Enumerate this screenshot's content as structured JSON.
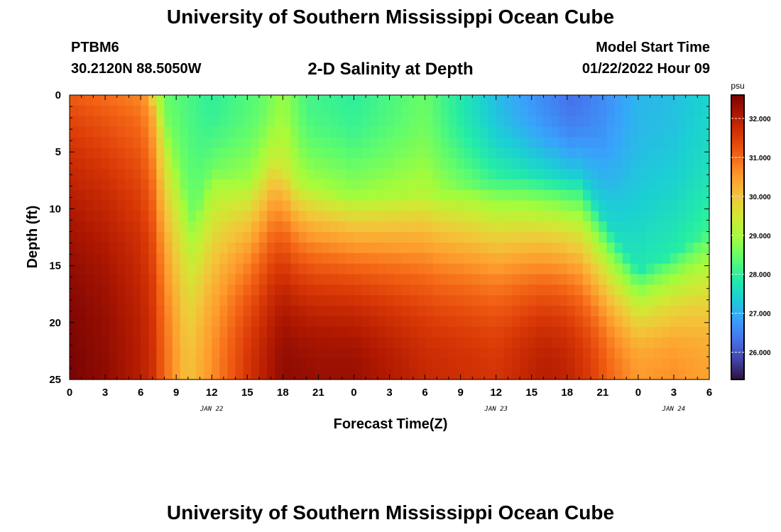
{
  "header": {
    "title": "University of Southern Mississippi Ocean Cube",
    "station": "PTBM6",
    "coords": "30.2120N  88.5050W",
    "subtitle": "2-D Salinity at Depth",
    "model_label": "Model Start Time",
    "model_time": "01/22/2022 Hour 09",
    "footer_title": "University of Southern Mississippi Ocean Cube"
  },
  "colorbar": {
    "unit": "psu",
    "vmin": 25.3,
    "vmax": 32.6,
    "ticks": [
      "26.000",
      "27.000",
      "28.000",
      "29.000",
      "30.000",
      "31.000",
      "32.000"
    ],
    "tick_values": [
      26,
      27,
      28,
      29,
      30,
      31,
      32
    ],
    "stops": [
      "#30123b",
      "#4145ab",
      "#4675ed",
      "#39a2fc",
      "#1bcfd4",
      "#24eca6",
      "#61fc6c",
      "#a4fc3b",
      "#d1e834",
      "#f3c63a",
      "#fe9b2d",
      "#f36315",
      "#d93806",
      "#b11901",
      "#7a0403"
    ]
  },
  "chart_data": {
    "type": "heatmap",
    "title": "2-D Salinity at Depth",
    "xlabel": "Forecast Time(Z)",
    "ylabel": "Depth (ft)",
    "x_range": [
      0,
      54
    ],
    "y_range": [
      0,
      25
    ],
    "x_tick_labels": [
      "0",
      "3",
      "6",
      "9",
      "12",
      "15",
      "18",
      "21",
      "0",
      "3",
      "6",
      "9",
      "12",
      "15",
      "18",
      "21",
      "0",
      "3",
      "6"
    ],
    "y_tick_labels": [
      "0",
      "5",
      "10",
      "15",
      "20",
      "25"
    ],
    "y_tick_values": [
      0,
      5,
      10,
      15,
      20,
      25
    ],
    "date_labels": [
      {
        "text": "JAN 22",
        "at_hour": 12
      },
      {
        "text": "JAN 23",
        "at_hour": 36
      },
      {
        "text": "JAN 24",
        "at_hour": 51
      }
    ],
    "value_unit": "psu",
    "model": {
      "surface_hours": [
        0,
        6,
        6.7,
        7.3,
        8,
        12,
        16,
        18,
        20,
        24,
        30,
        36,
        40,
        42.5,
        45,
        48,
        51,
        54
      ],
      "surface_values": [
        30.7,
        30.3,
        30.0,
        29.5,
        28.5,
        28.0,
        28.4,
        28.9,
        28.2,
        28.0,
        28.5,
        27.2,
        26.6,
        26.3,
        26.6,
        27.1,
        27.2,
        27.5
      ],
      "halocline_hours": [
        0,
        6,
        6.8,
        7.5,
        9.5,
        10.5,
        12,
        15,
        17,
        19,
        24,
        31,
        34,
        38,
        43,
        44,
        46,
        48,
        51,
        54
      ],
      "halocline_depths": [
        0,
        0,
        0.5,
        2,
        8,
        11,
        6.5,
        8,
        6,
        8,
        9,
        9,
        8,
        7.5,
        7.5,
        9,
        12.5,
        15.5,
        14,
        12
      ],
      "bottom_hours": [
        0,
        3,
        6,
        7,
        8,
        10,
        12,
        15,
        18,
        21,
        24,
        30,
        36,
        40,
        42,
        44,
        46,
        48,
        51,
        54
      ],
      "bottom_values": [
        32.6,
        32.4,
        32.0,
        31.7,
        31.0,
        30.0,
        30.6,
        31.6,
        32.4,
        32.3,
        32.3,
        31.8,
        31.6,
        32.0,
        31.9,
        31.5,
        30.9,
        30.5,
        30.6,
        30.4
      ]
    }
  },
  "axes_title": "Forecast Time(Z)"
}
